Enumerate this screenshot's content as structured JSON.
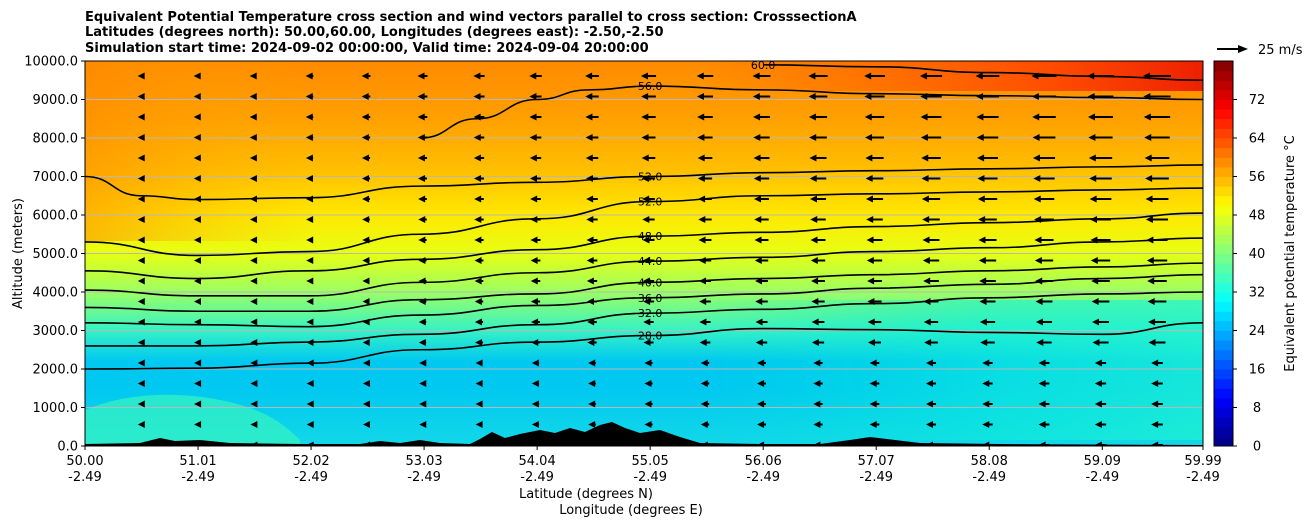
{
  "chart_data": {
    "type": "contour",
    "title_lines": [
      "Equivalent Potential Temperature cross section and wind vectors parallel to cross section: CrosssectionA",
      "Latitudes (degrees north): 50.00,60.00, Longitudes (degrees east): -2.50,-2.50",
      "Simulation start time: 2024-09-02 00:00:00, Valid time: 2024-09-04 20:00:00"
    ],
    "xlabel_lines": [
      "Latitude (degrees N)",
      "Longitude (degrees E)"
    ],
    "ylabel": "Altitude (meters)",
    "xlim": [
      50.0,
      59.99
    ],
    "ylim": [
      0,
      10000
    ],
    "grid": "horizontal",
    "x_ticks": [
      {
        "lat": "50.00",
        "lon": "-2.49",
        "value": 50.0
      },
      {
        "lat": "51.01",
        "lon": "-2.49",
        "value": 51.01
      },
      {
        "lat": "52.02",
        "lon": "-2.49",
        "value": 52.02
      },
      {
        "lat": "53.03",
        "lon": "-2.49",
        "value": 53.03
      },
      {
        "lat": "54.04",
        "lon": "-2.49",
        "value": 54.04
      },
      {
        "lat": "55.05",
        "lon": "-2.49",
        "value": 55.05
      },
      {
        "lat": "56.06",
        "lon": "-2.49",
        "value": 56.06
      },
      {
        "lat": "57.07",
        "lon": "-2.49",
        "value": 57.07
      },
      {
        "lat": "58.08",
        "lon": "-2.49",
        "value": 58.08
      },
      {
        "lat": "59.09",
        "lon": "-2.49",
        "value": 59.09
      },
      {
        "lat": "59.99",
        "lon": "-2.49",
        "value": 59.99
      }
    ],
    "y_ticks": [
      "0.0",
      "1000.0",
      "2000.0",
      "3000.0",
      "4000.0",
      "5000.0",
      "6000.0",
      "7000.0",
      "8000.0",
      "9000.0",
      "10000.0"
    ],
    "colorbar": {
      "label": "Equivalent potential temperature °C",
      "range": [
        0,
        80
      ],
      "ticks": [
        "0",
        "8",
        "16",
        "24",
        "32",
        "40",
        "48",
        "56",
        "64",
        "72"
      ],
      "colormap": "jet"
    },
    "quiver_key": {
      "label": "25 m/s",
      "speed": 25
    },
    "contours": [
      {
        "level": 28,
        "label": "28.0",
        "points": [
          [
            50.0,
            2000
          ],
          [
            51.0,
            2020
          ],
          [
            52.0,
            2150
          ],
          [
            53.0,
            2500
          ],
          [
            54.04,
            2700
          ],
          [
            55.05,
            2870
          ],
          [
            56.06,
            3050
          ],
          [
            57.07,
            3020
          ],
          [
            58.08,
            2950
          ],
          [
            59.09,
            2900
          ],
          [
            59.99,
            3200
          ]
        ]
      },
      {
        "level": 32,
        "label": "32.0",
        "points": [
          [
            50.0,
            2600
          ],
          [
            51.0,
            2600
          ],
          [
            52.0,
            2700
          ],
          [
            53.0,
            2900
          ],
          [
            54.04,
            3150
          ],
          [
            55.05,
            3450
          ],
          [
            56.06,
            3550
          ],
          [
            57.07,
            3700
          ],
          [
            58.08,
            3850
          ],
          [
            59.09,
            3950
          ],
          [
            59.99,
            4000
          ]
        ]
      },
      {
        "level": 36,
        "label": "36.0",
        "points": [
          [
            50.0,
            3200
          ],
          [
            51.0,
            3150
          ],
          [
            52.0,
            3100
          ],
          [
            53.0,
            3400
          ],
          [
            54.04,
            3650
          ],
          [
            55.05,
            3850
          ],
          [
            56.06,
            3950
          ],
          [
            57.07,
            4100
          ],
          [
            58.08,
            4200
          ],
          [
            59.09,
            4350
          ],
          [
            59.99,
            4450
          ]
        ]
      },
      {
        "level": 40,
        "label": "40.0",
        "points": [
          [
            50.0,
            3600
          ],
          [
            51.0,
            3500
          ],
          [
            52.0,
            3500
          ],
          [
            53.0,
            3800
          ],
          [
            54.04,
            3950
          ],
          [
            55.05,
            4250
          ],
          [
            56.06,
            4350
          ],
          [
            57.07,
            4450
          ],
          [
            58.08,
            4550
          ],
          [
            59.09,
            4650
          ],
          [
            59.99,
            4750
          ]
        ]
      },
      {
        "level": 44,
        "label": "44.0",
        "points": [
          [
            50.0,
            4050
          ],
          [
            51.0,
            3900
          ],
          [
            52.0,
            3900
          ],
          [
            53.0,
            4250
          ],
          [
            54.04,
            4500
          ],
          [
            55.05,
            4800
          ],
          [
            56.06,
            4900
          ],
          [
            57.07,
            5050
          ],
          [
            58.08,
            5150
          ],
          [
            59.09,
            5300
          ],
          [
            59.99,
            5400
          ]
        ]
      },
      {
        "level": 48,
        "label": "48.0",
        "points": [
          [
            50.0,
            4550
          ],
          [
            51.0,
            4350
          ],
          [
            52.0,
            4550
          ],
          [
            53.0,
            4850
          ],
          [
            54.04,
            5100
          ],
          [
            55.05,
            5450
          ],
          [
            56.06,
            5550
          ],
          [
            57.07,
            5700
          ],
          [
            58.08,
            5800
          ],
          [
            59.09,
            5900
          ],
          [
            59.99,
            6050
          ]
        ]
      },
      {
        "level": 52,
        "label": "52.0",
        "points": [
          [
            50.0,
            5300
          ],
          [
            51.0,
            4950
          ],
          [
            52.0,
            5050
          ],
          [
            53.0,
            5500
          ],
          [
            54.04,
            5900
          ],
          [
            55.05,
            6350
          ],
          [
            56.06,
            6500
          ],
          [
            57.07,
            6550
          ],
          [
            58.08,
            6600
          ],
          [
            59.09,
            6650
          ],
          [
            59.99,
            6700
          ]
        ]
      },
      {
        "level": 52,
        "label": "52.0",
        "points": [
          [
            50.0,
            7000
          ],
          [
            50.5,
            6500
          ],
          [
            51.0,
            6400
          ],
          [
            52.0,
            6450
          ],
          [
            53.0,
            6750
          ],
          [
            54.04,
            6850
          ],
          [
            55.05,
            7000
          ],
          [
            56.06,
            7100
          ],
          [
            57.07,
            7150
          ],
          [
            58.08,
            7200
          ],
          [
            59.09,
            7250
          ],
          [
            59.99,
            7300
          ]
        ]
      },
      {
        "level": 56,
        "label": "56.0",
        "points": [
          [
            53.0,
            8000
          ],
          [
            53.5,
            8500
          ],
          [
            54.04,
            9000
          ],
          [
            54.5,
            9250
          ],
          [
            55.05,
            9350
          ],
          [
            56.06,
            9250
          ],
          [
            57.07,
            9150
          ],
          [
            58.08,
            9100
          ],
          [
            59.09,
            9050
          ],
          [
            59.99,
            9000
          ]
        ]
      },
      {
        "level": 60,
        "label": "60.0",
        "points": [
          [
            56.06,
            9900
          ],
          [
            57.07,
            9850
          ],
          [
            58.08,
            9700
          ],
          [
            59.09,
            9600
          ],
          [
            59.99,
            9500
          ]
        ]
      }
    ]
  }
}
